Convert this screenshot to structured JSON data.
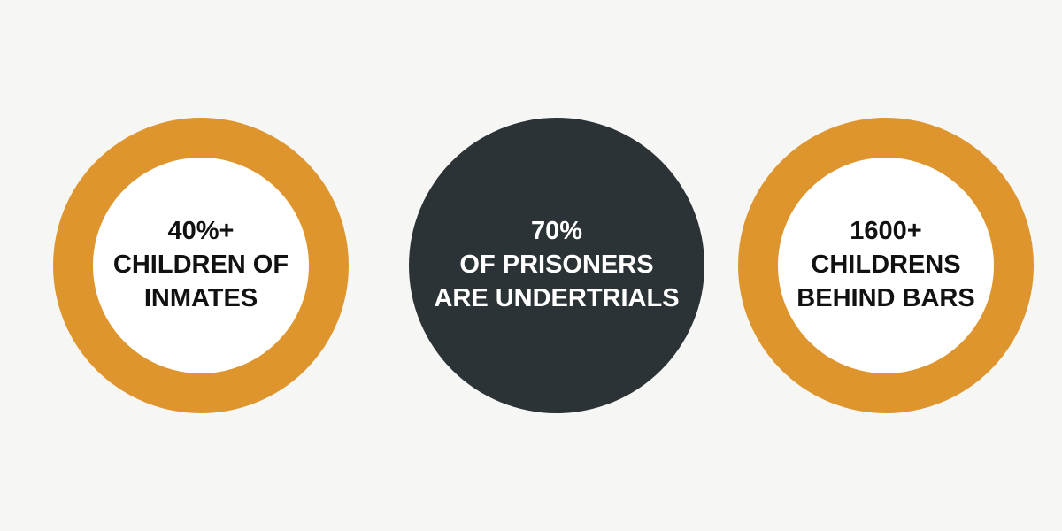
{
  "stats": [
    {
      "lines": [
        "40%+",
        "CHILDREN OF",
        "INMATES"
      ]
    },
    {
      "lines": [
        "70%",
        "OF PRISONERS",
        "ARE UNDERTRIALS"
      ]
    },
    {
      "lines": [
        "1600+",
        "CHILDRENS",
        "BEHIND BARS"
      ]
    }
  ],
  "colors": {
    "background": "#f6f7f4",
    "accent_ring": "#df952d",
    "dark_circle": "#2c3336",
    "ring_text": "#111111",
    "dark_text": "#ffffff"
  }
}
